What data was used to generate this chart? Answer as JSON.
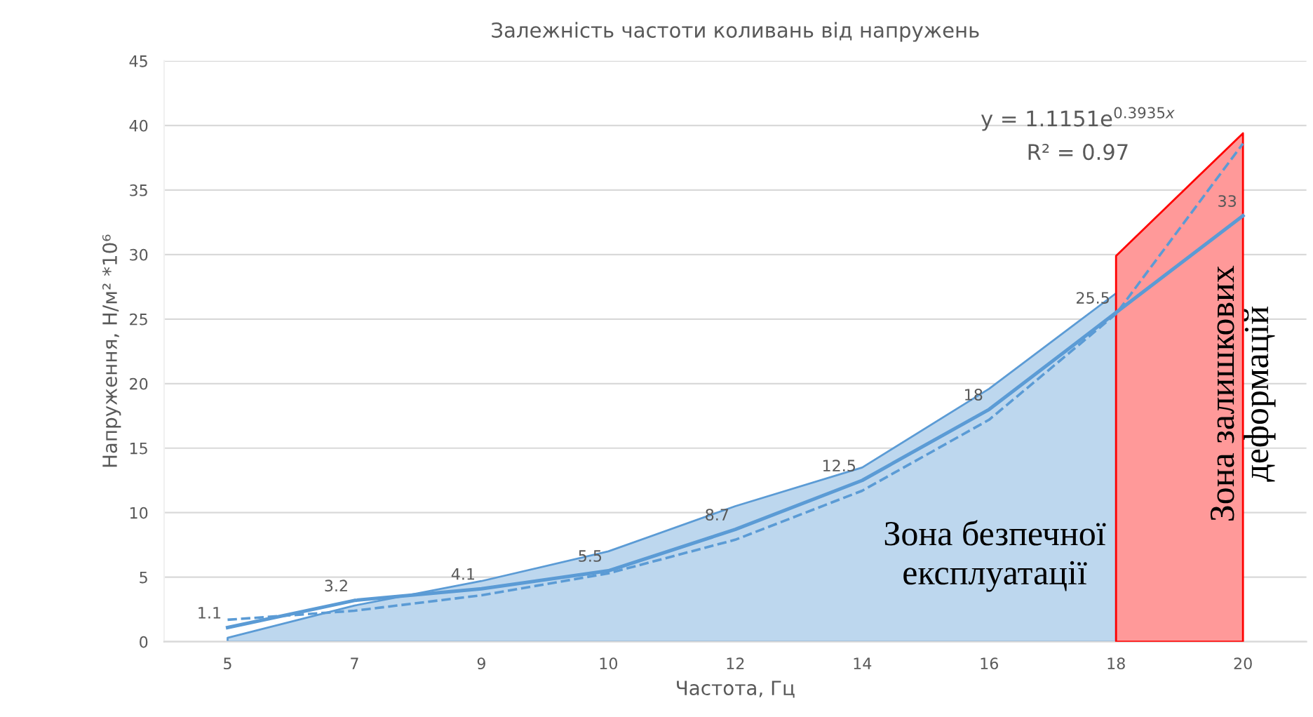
{
  "chart_data": {
    "type": "line",
    "title": "Залежність частоти коливань від напружень",
    "xlabel": "Частота, Гц",
    "ylabel": "Напруження, Н/м² *10⁶",
    "categories": [
      "5",
      "7",
      "9",
      "10",
      "12",
      "14",
      "16",
      "18",
      "20"
    ],
    "series": [
      {
        "type": "area",
        "color": "#bdd7ee",
        "values": [
          0.3,
          2.8,
          4.7,
          7,
          10.5,
          13.5,
          19.6,
          27,
          null
        ]
      },
      {
        "type": "area",
        "color": "#ff9999",
        "values": [
          null,
          null,
          null,
          null,
          null,
          null,
          null,
          29.9,
          39.4
        ]
      },
      {
        "color": "#5b9bd5",
        "values": [
          1.1,
          3.2,
          4.1,
          5.5,
          8.7,
          12.5,
          18,
          25.5,
          33
        ],
        "data_labels": true
      },
      {
        "color": "#5b9bd5",
        "line_style": "dashed",
        "values": [
          1.7,
          2.4,
          3.6,
          5.3,
          7.9,
          11.7,
          17.2,
          25.4,
          38.6
        ]
      }
    ],
    "ylim": [
      0,
      45
    ],
    "yticks": [
      0,
      5,
      10,
      15,
      20,
      25,
      30,
      35,
      40,
      45
    ],
    "grid": "y",
    "annotations": [
      "y = 1.1151e$^{0.3935x}$",
      "R² = 0.97",
      "Зона безпечної експлуатації",
      "Зона залишкових деформацій"
    ]
  }
}
